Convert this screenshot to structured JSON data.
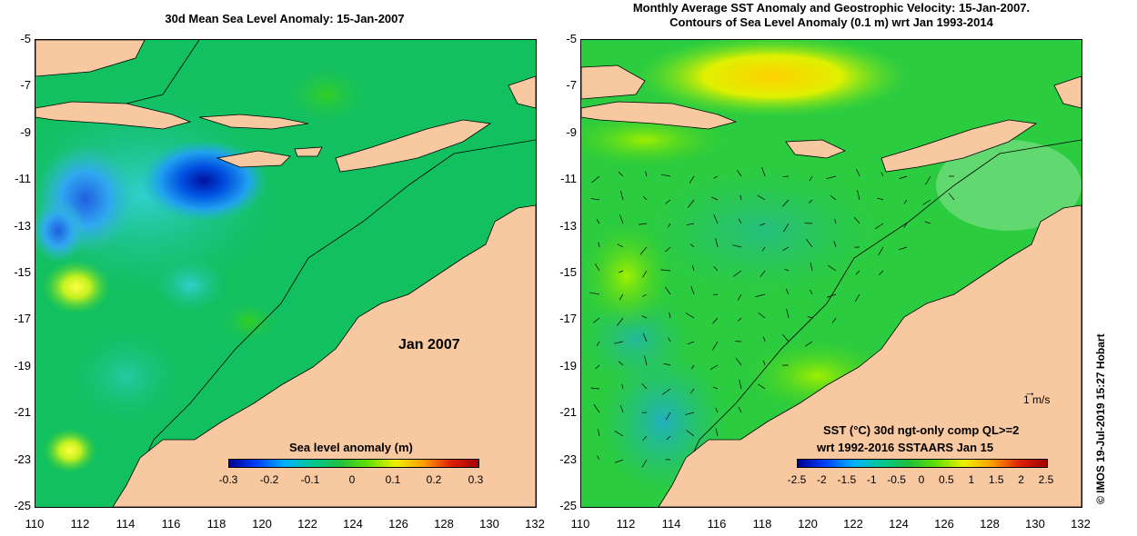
{
  "left_panel": {
    "title": "30d Mean Sea Level Anomaly: 15-Jan-2007",
    "date_label": "Jan 2007",
    "colorbar": {
      "label": "Sea level anomaly (m)",
      "ticks": [
        "-0.3",
        "-0.2",
        "-0.1",
        "0",
        "0.1",
        "0.2",
        "0.3"
      ],
      "range": [
        -0.3,
        0.3
      ]
    }
  },
  "right_panel": {
    "title_line1": "Monthly Average SST Anomaly  and Geostrophic Velocity: 15-Jan-2007.",
    "title_line2": "Contours of Sea Level Anomaly (0.1 m) wrt Jan 1993-2014",
    "velocity_scale_label": "1 m/s",
    "colorbar": {
      "label_line1": "SST (°C) 30d ngt-only comp QL>=2",
      "label_line2": "wrt 1992-2016 SSTAARS Jan 15",
      "ticks": [
        "-2.5",
        "-2",
        "-1.5",
        "-1",
        "-0.5",
        "0",
        "0.5",
        "1",
        "1.5",
        "2",
        "2.5"
      ],
      "range": [
        -2.5,
        2.5
      ]
    }
  },
  "axes": {
    "lat_ticks": [
      "-5",
      "-7",
      "-9",
      "-11",
      "-13",
      "-15",
      "-17",
      "-19",
      "-21",
      "-23",
      "-25"
    ],
    "lon_ticks": [
      "110",
      "112",
      "114",
      "116",
      "118",
      "120",
      "122",
      "124",
      "126",
      "128",
      "130",
      "132"
    ],
    "lat_range": [
      -25,
      -5
    ],
    "lon_range": [
      110,
      132
    ]
  },
  "watermark": "© IMOS 19-Jul-2019 15:27 Hobart",
  "colors": {
    "land": "#f8c8a0",
    "coast": "#000000",
    "ocean_base_left": "#10c060",
    "ocean_base_right": "#28d040",
    "cbar_gradient": [
      "#000090",
      "#0040ff",
      "#00c0ff",
      "#00c060",
      "#60e000",
      "#f0f000",
      "#ff8000",
      "#c00000"
    ]
  }
}
